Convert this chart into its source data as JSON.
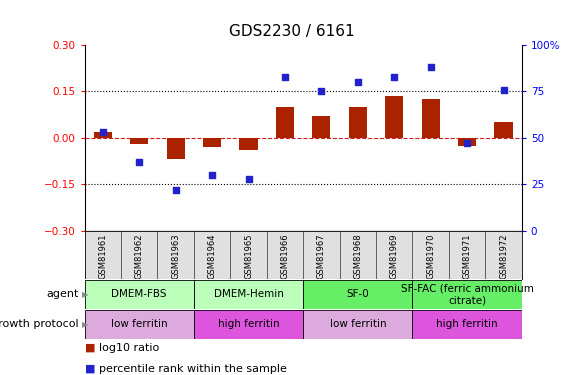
{
  "title": "GDS2230 / 6161",
  "samples": [
    "GSM81961",
    "GSM81962",
    "GSM81963",
    "GSM81964",
    "GSM81965",
    "GSM81966",
    "GSM81967",
    "GSM81968",
    "GSM81969",
    "GSM81970",
    "GSM81971",
    "GSM81972"
  ],
  "log10_ratio": [
    0.02,
    -0.02,
    -0.07,
    -0.03,
    -0.04,
    0.1,
    0.07,
    0.1,
    0.135,
    0.125,
    -0.025,
    0.05
  ],
  "percentile_rank": [
    53,
    37,
    22,
    30,
    28,
    83,
    75,
    80,
    83,
    88,
    47,
    76
  ],
  "ylim_left": [
    -0.3,
    0.3
  ],
  "ylim_right": [
    0,
    100
  ],
  "yticks_left": [
    -0.3,
    -0.15,
    0.0,
    0.15,
    0.3
  ],
  "yticks_right": [
    0,
    25,
    50,
    75,
    100
  ],
  "hlines": [
    0.15,
    -0.15
  ],
  "agent_groups": [
    {
      "label": "DMEM-FBS",
      "start": 0,
      "end": 3,
      "color": "#bbffbb"
    },
    {
      "label": "DMEM-Hemin",
      "start": 3,
      "end": 6,
      "color": "#bbffbb"
    },
    {
      "label": "SF-0",
      "start": 6,
      "end": 9,
      "color": "#66ee66"
    },
    {
      "label": "SF-FAC (ferric ammonium\ncitrate)",
      "start": 9,
      "end": 12,
      "color": "#66ee66"
    }
  ],
  "growth_groups": [
    {
      "label": "low ferritin",
      "start": 0,
      "end": 3,
      "color": "#ddaadd"
    },
    {
      "label": "high ferritin",
      "start": 3,
      "end": 6,
      "color": "#dd55dd"
    },
    {
      "label": "low ferritin",
      "start": 6,
      "end": 9,
      "color": "#ddaadd"
    },
    {
      "label": "high ferritin",
      "start": 9,
      "end": 12,
      "color": "#dd55dd"
    }
  ],
  "bar_color": "#aa2200",
  "dot_color": "#2222cc",
  "zero_line_color": "#cc2222",
  "background_color": "#ffffff",
  "title_fontsize": 11,
  "tick_fontsize": 7.5,
  "sample_fontsize": 6,
  "legend_fontsize": 8,
  "group_fontsize": 7.5
}
